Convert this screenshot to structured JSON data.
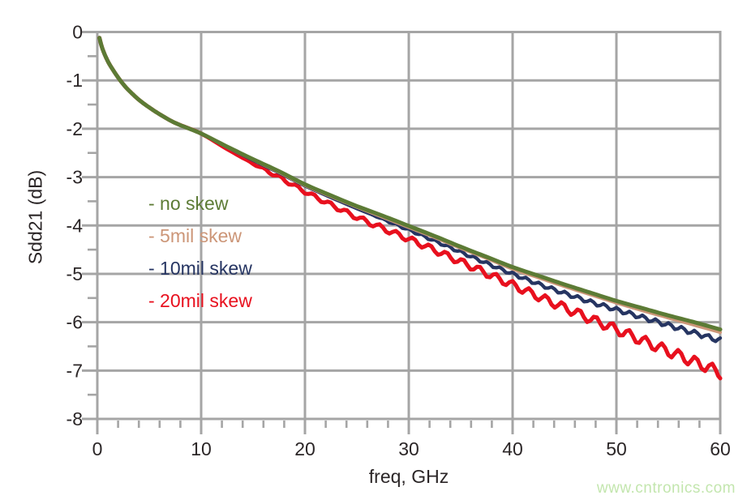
{
  "watermark": {
    "text": "www.cntronics.com",
    "color": "#c3e6ae"
  },
  "chart_data": {
    "type": "line",
    "title": "",
    "xlabel": "freq, GHz",
    "ylabel": "Sdd21 (dB)",
    "xlim": [
      0,
      60
    ],
    "ylim": [
      -8,
      0
    ],
    "x_major_ticks": [
      0,
      10,
      20,
      30,
      40,
      50,
      60
    ],
    "x_minor_step": 2,
    "y_major_ticks": [
      0,
      -1,
      -2,
      -3,
      -4,
      -5,
      -6,
      -7,
      -8
    ],
    "y_minor_step": 0.5,
    "grid": true,
    "legend_position": "inside top-left",
    "colors": {
      "grid": "#a5a5a5",
      "axis_text": "#2b2627",
      "background": "#ffffff"
    },
    "x": [
      0.2,
      0.5,
      1,
      1.5,
      2,
      2.5,
      3,
      4,
      5,
      6,
      7.5,
      10,
      12.5,
      15,
      17.5,
      20,
      22.5,
      25,
      27.5,
      30,
      32.5,
      35,
      37.5,
      40,
      42.5,
      45,
      47.5,
      50,
      52.5,
      55,
      57.5,
      60
    ],
    "series": [
      {
        "name": "no-skew",
        "label": "- no skew",
        "color": "#5c7b35",
        "stroke_width": 5,
        "values": [
          -0.12,
          -0.35,
          -0.6,
          -0.78,
          -0.94,
          -1.08,
          -1.2,
          -1.4,
          -1.56,
          -1.7,
          -1.88,
          -2.1,
          -2.37,
          -2.63,
          -2.88,
          -3.15,
          -3.38,
          -3.6,
          -3.8,
          -4.01,
          -4.22,
          -4.44,
          -4.65,
          -4.86,
          -5.04,
          -5.22,
          -5.39,
          -5.56,
          -5.71,
          -5.86,
          -6.0,
          -6.15
        ],
        "ripple": null
      },
      {
        "name": "5mil-skew",
        "label": "- 5mil skew",
        "color": "#cc9678",
        "stroke_width": 4,
        "values": [
          -0.12,
          -0.35,
          -0.6,
          -0.78,
          -0.94,
          -1.08,
          -1.2,
          -1.4,
          -1.56,
          -1.7,
          -1.88,
          -2.1,
          -2.38,
          -2.64,
          -2.9,
          -3.17,
          -3.4,
          -3.62,
          -3.83,
          -4.04,
          -4.25,
          -4.47,
          -4.68,
          -4.9,
          -5.08,
          -5.26,
          -5.43,
          -5.6,
          -5.76,
          -5.91,
          -6.06,
          -6.21
        ],
        "ripple": null
      },
      {
        "name": "10mil-skew",
        "label": "- 10mil skew",
        "color": "#263562",
        "stroke_width": 4.3,
        "values": [
          -0.12,
          -0.35,
          -0.6,
          -0.78,
          -0.94,
          -1.08,
          -1.2,
          -1.4,
          -1.56,
          -1.7,
          -1.88,
          -2.1,
          -2.38,
          -2.65,
          -2.91,
          -3.18,
          -3.42,
          -3.65,
          -3.87,
          -4.09,
          -4.32,
          -4.55,
          -4.78,
          -5.0,
          -5.21,
          -5.4,
          -5.58,
          -5.74,
          -5.9,
          -6.06,
          -6.22,
          -6.38
        ],
        "ripple": {
          "start": 26,
          "period": 1.25,
          "amp_min": 0.02,
          "amp_max": 0.055
        }
      },
      {
        "name": "20mil-skew",
        "label": "- 20mil skew",
        "color": "#e8101e",
        "stroke_width": 5,
        "values": [
          -0.12,
          -0.35,
          -0.6,
          -0.78,
          -0.94,
          -1.08,
          -1.2,
          -1.4,
          -1.56,
          -1.7,
          -1.88,
          -2.1,
          -2.42,
          -2.72,
          -3.0,
          -3.3,
          -3.57,
          -3.83,
          -4.06,
          -4.28,
          -4.51,
          -4.75,
          -4.99,
          -5.23,
          -5.47,
          -5.7,
          -5.93,
          -6.15,
          -6.38,
          -6.6,
          -6.82,
          -7.04
        ],
        "ripple": {
          "start": 14,
          "period": 1.6,
          "amp_min": 0.03,
          "amp_max": 0.12
        }
      }
    ]
  }
}
